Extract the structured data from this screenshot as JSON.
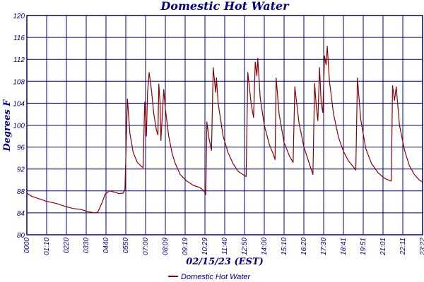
{
  "chart_data": {
    "type": "line",
    "title": "Domestic Hot Water",
    "xlabel": "02/15/23 (EST)",
    "ylabel": "Degrees F",
    "ylim": [
      80,
      120
    ],
    "yticks": [
      "80",
      "84",
      "88",
      "92",
      "96",
      "100",
      "104",
      "108",
      "112",
      "116",
      "120"
    ],
    "xticks": [
      "0000",
      "01:10",
      "0220",
      "0330",
      "0440",
      "0550",
      "07:00",
      "08:09",
      "09:19",
      "10:29",
      "11:40",
      "12:50",
      "14:00",
      "15:10",
      "16:20",
      "17:30",
      "18:41",
      "19:51",
      "21:01",
      "22:11",
      "23:22"
    ],
    "x_unit": "hours",
    "xlim": [
      0,
      24
    ],
    "grid": true,
    "legend_position": "bottom-center",
    "series": [
      {
        "name": "Domestic Hot Water",
        "color": "#8b0000",
        "points": [
          [
            0.0,
            87.6
          ],
          [
            0.3,
            87.0
          ],
          [
            0.7,
            86.6
          ],
          [
            1.2,
            86.1
          ],
          [
            1.8,
            85.7
          ],
          [
            2.3,
            85.2
          ],
          [
            2.8,
            84.8
          ],
          [
            3.3,
            84.6
          ],
          [
            3.7,
            84.2
          ],
          [
            4.1,
            84.0
          ],
          [
            4.3,
            84.1
          ],
          [
            4.55,
            85.8
          ],
          [
            4.75,
            87.4
          ],
          [
            5.0,
            88.0
          ],
          [
            5.3,
            87.8
          ],
          [
            5.6,
            87.5
          ],
          [
            5.85,
            87.6
          ],
          [
            5.95,
            88.3
          ],
          [
            6.1,
            104.8
          ],
          [
            6.25,
            98.5
          ],
          [
            6.45,
            95.0
          ],
          [
            6.7,
            93.2
          ],
          [
            6.9,
            92.6
          ],
          [
            7.05,
            92.2
          ],
          [
            7.15,
            104.2
          ],
          [
            7.25,
            98.0
          ],
          [
            7.32,
            106.0
          ],
          [
            7.42,
            109.6
          ],
          [
            7.55,
            106.5
          ],
          [
            7.7,
            102.0
          ],
          [
            7.85,
            99.2
          ],
          [
            7.95,
            98.2
          ],
          [
            8.0,
            107.5
          ],
          [
            8.08,
            104.0
          ],
          [
            8.13,
            97.2
          ],
          [
            8.22,
            102.0
          ],
          [
            8.3,
            106.5
          ],
          [
            8.4,
            103.0
          ],
          [
            8.6,
            98.0
          ],
          [
            8.8,
            95.0
          ],
          [
            9.0,
            93.0
          ],
          [
            9.3,
            91.0
          ],
          [
            9.7,
            89.8
          ],
          [
            10.1,
            89.0
          ],
          [
            10.5,
            88.6
          ],
          [
            10.75,
            88.0
          ],
          [
            10.85,
            87.3
          ],
          [
            10.92,
            100.6
          ],
          [
            11.05,
            97.5
          ],
          [
            11.2,
            95.4
          ],
          [
            11.3,
            110.5
          ],
          [
            11.45,
            106.0
          ],
          [
            11.5,
            108.6
          ],
          [
            11.6,
            104.0
          ],
          [
            11.9,
            98.0
          ],
          [
            12.2,
            95.0
          ],
          [
            12.5,
            93.0
          ],
          [
            12.8,
            91.6
          ],
          [
            13.1,
            91.0
          ],
          [
            13.3,
            90.6
          ],
          [
            13.4,
            109.6
          ],
          [
            13.6,
            104.0
          ],
          [
            13.75,
            101.4
          ],
          [
            13.85,
            111.5
          ],
          [
            13.95,
            109.0
          ],
          [
            14.0,
            112.2
          ],
          [
            14.15,
            105.0
          ],
          [
            14.4,
            100.0
          ],
          [
            14.7,
            96.5
          ],
          [
            14.95,
            94.7
          ],
          [
            15.05,
            93.7
          ],
          [
            15.12,
            108.6
          ],
          [
            15.3,
            102.0
          ],
          [
            15.6,
            96.8
          ],
          [
            15.95,
            94.2
          ],
          [
            16.15,
            93.2
          ],
          [
            16.25,
            107.0
          ],
          [
            16.5,
            100.5
          ],
          [
            16.8,
            96.0
          ],
          [
            17.15,
            92.8
          ],
          [
            17.35,
            91.0
          ],
          [
            17.45,
            107.6
          ],
          [
            17.55,
            103.5
          ],
          [
            17.65,
            100.8
          ],
          [
            17.75,
            110.5
          ],
          [
            17.85,
            104.0
          ],
          [
            17.95,
            102.3
          ],
          [
            18.05,
            112.6
          ],
          [
            18.15,
            111.0
          ],
          [
            18.22,
            114.4
          ],
          [
            18.35,
            108.0
          ],
          [
            18.6,
            102.0
          ],
          [
            18.9,
            97.8
          ],
          [
            19.2,
            95.2
          ],
          [
            19.5,
            93.5
          ],
          [
            19.8,
            92.4
          ],
          [
            19.95,
            91.8
          ],
          [
            20.05,
            108.6
          ],
          [
            20.25,
            101.0
          ],
          [
            20.55,
            95.8
          ],
          [
            20.9,
            93.0
          ],
          [
            21.3,
            91.3
          ],
          [
            21.7,
            90.3
          ],
          [
            22.0,
            89.9
          ],
          [
            22.1,
            89.8
          ],
          [
            22.18,
            107.2
          ],
          [
            22.3,
            104.5
          ],
          [
            22.4,
            107.0
          ],
          [
            22.6,
            100.0
          ],
          [
            22.9,
            95.5
          ],
          [
            23.2,
            92.6
          ],
          [
            23.5,
            91.0
          ],
          [
            23.8,
            90.0
          ],
          [
            24.0,
            89.6
          ]
        ]
      }
    ]
  }
}
